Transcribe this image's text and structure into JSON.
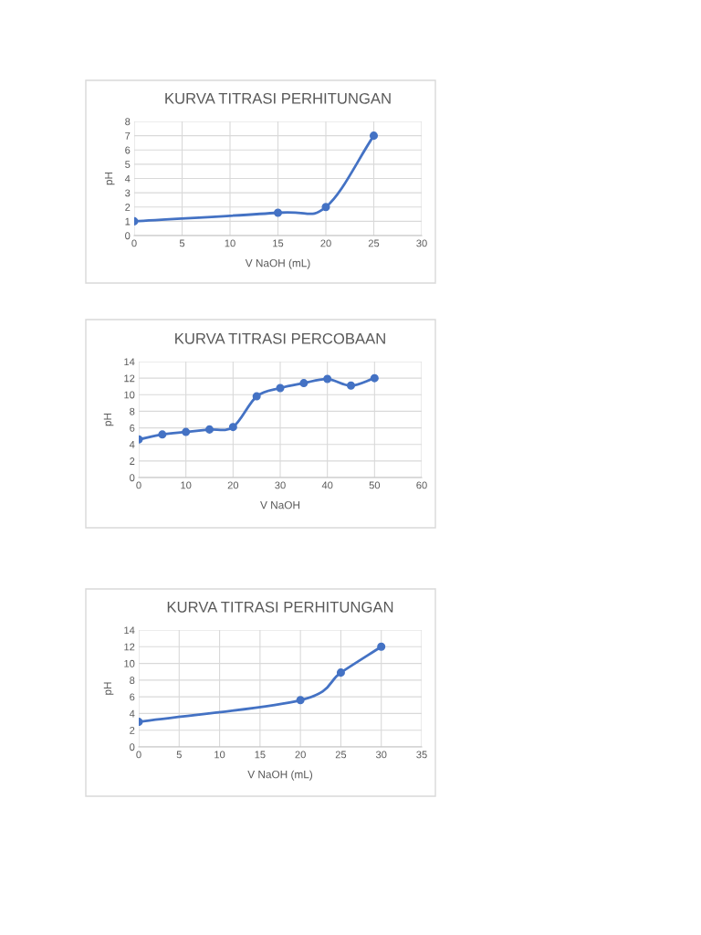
{
  "chart_data": [
    {
      "type": "line",
      "title": "KURVA TITRASI PERHITUNGAN",
      "xlabel": "V NaOH (mL)",
      "ylabel": "pH",
      "x": [
        0,
        15,
        20,
        25
      ],
      "series": [
        {
          "color": "#4472c4",
          "values": [
            1,
            1.6,
            2,
            7
          ]
        }
      ],
      "xlim": [
        0,
        30
      ],
      "xticks": [
        0,
        5,
        10,
        15,
        20,
        25,
        30
      ],
      "ylim": [
        0,
        8
      ],
      "yticks": [
        0,
        1,
        2,
        3,
        4,
        5,
        6,
        7,
        8
      ],
      "grid": true,
      "marker": "circle",
      "line_style": "solid"
    },
    {
      "type": "line",
      "title": "KURVA TITRASI PERCOBAAN",
      "xlabel": "V NaOH",
      "ylabel": "pH",
      "x": [
        0,
        5,
        10,
        15,
        20,
        25,
        30,
        35,
        40,
        45,
        50
      ],
      "series": [
        {
          "color": "#4472c4",
          "values": [
            4.6,
            5.2,
            5.5,
            5.8,
            6.1,
            9.8,
            10.8,
            11.4,
            11.9,
            11.1,
            12.0
          ]
        }
      ],
      "xlim": [
        0,
        60
      ],
      "xticks": [
        0,
        10,
        20,
        30,
        40,
        50,
        60
      ],
      "ylim": [
        0,
        14
      ],
      "yticks": [
        0,
        2,
        4,
        6,
        8,
        10,
        12,
        14
      ],
      "grid": true,
      "marker": "circle",
      "line_style": "solid"
    },
    {
      "type": "line",
      "title": "KURVA TITRASI PERHITUNGAN",
      "xlabel": "V NaOH (mL)",
      "ylabel": "pH",
      "x": [
        0,
        20,
        25,
        30
      ],
      "series": [
        {
          "color": "#4472c4",
          "values": [
            3,
            5.6,
            8.9,
            12
          ]
        }
      ],
      "xlim": [
        0,
        35
      ],
      "xticks": [
        0,
        5,
        10,
        15,
        20,
        25,
        30,
        35
      ],
      "ylim": [
        0,
        14
      ],
      "yticks": [
        0,
        2,
        4,
        6,
        8,
        10,
        12,
        14
      ],
      "grid": true,
      "marker": "circle",
      "line_style": "solid"
    }
  ]
}
